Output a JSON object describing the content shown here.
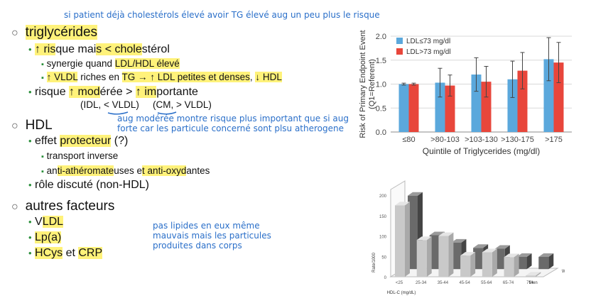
{
  "notes": {
    "top": "si patient déjà cholestérols élevé avoir TG élevé aug un peu plus le risque",
    "hdl_line1": "aug modérée montre risque plus important que si aug",
    "hdl_line2": "forte car les particule concerné sont plsu atherogene",
    "other_line1": "pas lipides en eux même",
    "other_line2": "mauvais mais les particules",
    "other_line3": "produites dans corps"
  },
  "outline": {
    "tg": {
      "title": "triglycérides",
      "s1": {
        "a": "↑ ris",
        "b": "que mai",
        "c": "s < chole",
        "d": "stérol"
      },
      "s1a": {
        "a": "synergie quand ",
        "b": "LDL/HDL élevé"
      },
      "s1b": {
        "a": "↑ VLDL",
        "b": " riches en ",
        "c": "TG → ↑ LDL petites et denses",
        "d": ", ",
        "e": "↓ HDL"
      },
      "s2": {
        "a": "risque ",
        "b": "↑ mod",
        "c": "érée > ",
        "d": "↑ im",
        "e": "portante"
      },
      "s2_idl": "(IDL, < VLDL)",
      "s2_cm": "(CM, > VLDL)"
    },
    "hdl": {
      "title": "HDL",
      "s1": {
        "a": "effet ",
        "b": "protecteur",
        "c": " (?)"
      },
      "s1a": "transport inverse",
      "s1b": {
        "a": "an",
        "b": "ti-athéromate",
        "c": "uses e",
        "d": "t ",
        "e": "anti-oxyd",
        "f": "antes"
      },
      "s2": "rôle discuté (non-HDL)"
    },
    "other": {
      "title": "autres facteurs",
      "i1": {
        "a": "V",
        "b": "LDL"
      },
      "i2": "Lp(a)",
      "i3": {
        "a": "HCys",
        "b": " et ",
        "c": "CRP"
      }
    }
  },
  "chart_data": [
    {
      "type": "bar",
      "categories": [
        "≤80",
        ">80-103",
        ">103-130",
        ">130-175",
        ">175"
      ],
      "series": [
        {
          "name": "LDL≤73 mg/dl",
          "color": "#5ba8dc",
          "values": [
            1.0,
            1.03,
            1.2,
            1.1,
            1.52
          ],
          "err": [
            0.02,
            0.3,
            0.35,
            0.38,
            0.45
          ]
        },
        {
          "name": "LDL>73 mg/dl",
          "color": "#e8463b",
          "values": [
            1.0,
            0.97,
            1.05,
            1.28,
            1.45
          ],
          "err": [
            0.02,
            0.22,
            0.32,
            0.38,
            0.42
          ]
        }
      ],
      "xlabel": "Quintile of Triglycerides (mg/dl)",
      "ylabel": "Risk of Primary Endpoint Event (Q1=Referent)",
      "ylim": [
        0,
        2.0
      ],
      "yticks": [
        "0.0",
        "0.5",
        "1.0",
        "1.5",
        "2.0"
      ],
      "legend": "top-left"
    },
    {
      "type": "bar",
      "categories": [
        "<25",
        "25-34",
        "35-44",
        "45-54",
        "55-64",
        "65-74",
        "75+"
      ],
      "series": [
        {
          "name": "Women",
          "values": [
            175,
            90,
            100,
            52,
            60,
            48,
            3
          ]
        },
        {
          "name": "Men",
          "values": [
            180,
            83,
            65,
            52,
            50,
            30,
            30
          ]
        }
      ],
      "xlabel": "HDL-C (mg/dL)",
      "ylabel": "Rate/1000",
      "ylim": [
        0,
        200
      ],
      "yticks": [
        "0",
        "50",
        "100",
        "150",
        "200"
      ]
    }
  ]
}
